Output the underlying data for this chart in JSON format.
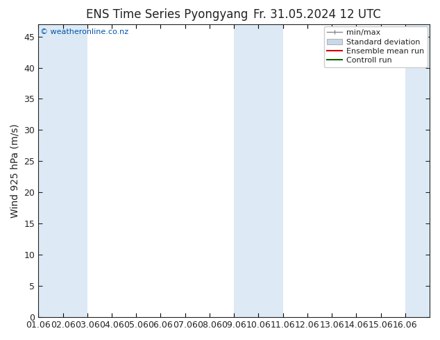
{
  "title_left": "ENS Time Series Pyongyang",
  "title_right": "Fr. 31.05.2024 12 UTC",
  "ylabel": "Wind 925 hPa (m/s)",
  "watermark": "© weatheronline.co.nz",
  "xlim": [
    0,
    16
  ],
  "ylim": [
    0,
    47
  ],
  "yticks": [
    0,
    5,
    10,
    15,
    20,
    25,
    30,
    35,
    40,
    45
  ],
  "xtick_labels": [
    "01.06",
    "02.06",
    "03.06",
    "04.06",
    "05.06",
    "06.06",
    "07.06",
    "08.06",
    "09.06",
    "10.06",
    "11.06",
    "12.06",
    "13.06",
    "14.06",
    "15.06",
    "16.06"
  ],
  "plot_bg": "#ffffff",
  "shaded_bands": [
    {
      "x_start": 0,
      "x_end": 1,
      "color": "#ddeaf5"
    },
    {
      "x_start": 1,
      "x_end": 2,
      "color": "#ddeaf5"
    },
    {
      "x_start": 8,
      "x_end": 9,
      "color": "#ddeaf5"
    },
    {
      "x_start": 9,
      "x_end": 10,
      "color": "#ddeaf5"
    },
    {
      "x_start": 15,
      "x_end": 16,
      "color": "#ddeaf5"
    }
  ],
  "legend_entries": [
    {
      "label": "min/max",
      "color": "#888888",
      "type": "minmax"
    },
    {
      "label": "Standard deviation",
      "color": "#c8d8e8",
      "type": "bar"
    },
    {
      "label": "Ensemble mean run",
      "color": "#cc0000",
      "type": "line"
    },
    {
      "label": "Controll run",
      "color": "#006600",
      "type": "line"
    }
  ],
  "title_fontsize": 12,
  "axis_label_fontsize": 10,
  "tick_fontsize": 9,
  "watermark_color": "#0055aa",
  "font_color": "#222222",
  "legend_fontsize": 8
}
